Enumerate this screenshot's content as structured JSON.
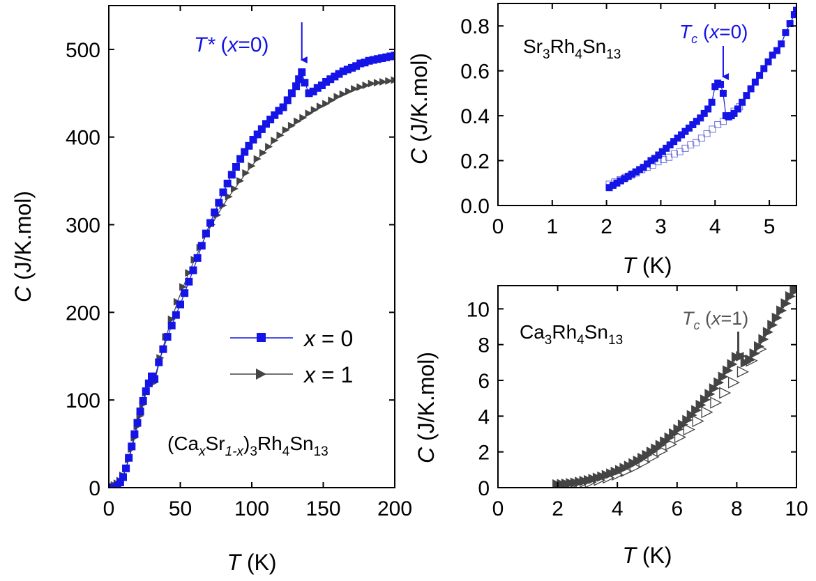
{
  "colors": {
    "blue": "#1414e6",
    "gray": "#444444",
    "open_blue": "#6f74d8",
    "open_gray": "#444444"
  },
  "chart_data": [
    {
      "panel": "left",
      "type": "scatter",
      "xlabel_italic": "T",
      "xlabel_unit": "(K)",
      "ylabel_italic": "C",
      "ylabel_unit": "(J/K.mol)",
      "xlim": [
        0,
        200
      ],
      "ylim": [
        0,
        550
      ],
      "xticks": [
        "0",
        "50",
        "100",
        "150",
        "200"
      ],
      "yticks": [
        "0",
        "100",
        "200",
        "300",
        "400",
        "500"
      ],
      "compound_label": {
        "a": "(Ca",
        "b": "x",
        "c": "Sr",
        "d": "1-x",
        "e": ")",
        "f": "3",
        "g": "Rh",
        "h": "4",
        "i": "Sn",
        "j": "13"
      },
      "annotation": {
        "italic": "T*",
        "rest_open": " (",
        "x": "x",
        "rest_close": "=0)"
      },
      "annotation_x": 135,
      "legend": [
        {
          "sym": "x",
          "text": " = 0"
        },
        {
          "sym": "x",
          "text": " = 1"
        }
      ],
      "series": [
        {
          "marker": "square",
          "x": [
            2,
            4,
            6,
            8,
            10,
            12,
            14,
            16,
            18,
            20,
            22,
            24,
            26,
            28,
            30,
            32,
            35,
            38,
            41,
            44,
            47,
            50,
            53,
            56,
            59,
            62,
            65,
            68,
            71,
            74,
            77,
            80,
            83,
            86,
            89,
            92,
            95,
            98,
            101,
            104,
            107,
            110,
            113,
            116,
            119,
            122,
            125,
            128,
            131,
            133,
            135,
            137,
            140,
            143,
            146,
            149,
            152,
            155,
            158,
            161,
            164,
            167,
            170,
            173,
            176,
            179,
            182,
            185,
            188,
            191,
            194,
            197,
            200
          ],
          "y": [
            0,
            0,
            2,
            6,
            12,
            22,
            34,
            47,
            61,
            74,
            87,
            99,
            110,
            119,
            127,
            124,
            143,
            158,
            172,
            185,
            197,
            209,
            222,
            235,
            248,
            262,
            276,
            290,
            302,
            314,
            325,
            337,
            347,
            357,
            366,
            375,
            383,
            390,
            397,
            403,
            409,
            415,
            420,
            425,
            430,
            434,
            442,
            450,
            458,
            466,
            474,
            462,
            450,
            452,
            456,
            459,
            463,
            466,
            469,
            472,
            475,
            477,
            479,
            481,
            484,
            485,
            487,
            488,
            489,
            490,
            491,
            492,
            493
          ]
        },
        {
          "marker": "triangle-right",
          "x": [
            2,
            4,
            6,
            8,
            10,
            12,
            14,
            16,
            18,
            20,
            22,
            24,
            26,
            28,
            30,
            32,
            36,
            40,
            44,
            48,
            52,
            56,
            60,
            64,
            68,
            72,
            76,
            80,
            84,
            88,
            92,
            96,
            100,
            104,
            108,
            112,
            116,
            120,
            124,
            128,
            132,
            136,
            140,
            144,
            148,
            152,
            156,
            160,
            164,
            168,
            172,
            176,
            180,
            184,
            188,
            192,
            196,
            200
          ],
          "y": [
            2,
            3,
            5,
            8,
            14,
            22,
            32,
            44,
            57,
            70,
            82,
            95,
            108,
            118,
            126,
            120,
            148,
            172,
            192,
            212,
            229,
            245,
            260,
            274,
            288,
            300,
            311,
            322,
            332,
            341,
            350,
            359,
            367,
            375,
            382,
            389,
            396,
            402,
            408,
            413,
            418,
            422,
            427,
            431,
            435,
            438,
            442,
            446,
            449,
            452,
            455,
            457,
            459,
            461,
            462,
            463,
            464,
            465
          ]
        }
      ]
    },
    {
      "panel": "top-right",
      "type": "scatter",
      "xlabel_italic": "T",
      "xlabel_unit": "(K)",
      "ylabel_italic": "C",
      "ylabel_unit": "(J/K.mol)",
      "xlim": [
        0,
        5.5
      ],
      "ylim": [
        0,
        0.9
      ],
      "xticks": [
        "0",
        "1",
        "2",
        "3",
        "4",
        "5"
      ],
      "yticks": [
        "0.0",
        "0.2",
        "0.4",
        "0.6",
        "0.8"
      ],
      "compound_label": {
        "a": "Sr",
        "b": "3",
        "c": "Rh",
        "d": "4",
        "e": "Sn",
        "f": "13"
      },
      "annotation": {
        "italic": "T",
        "sub": "c",
        "rest_open": " (",
        "x": "x",
        "rest_close": "=0)"
      },
      "annotation_x": 4.15,
      "series": [
        {
          "marker": "square",
          "x": [
            2.05,
            2.12,
            2.19,
            2.26,
            2.33,
            2.4,
            2.47,
            2.54,
            2.61,
            2.68,
            2.75,
            2.82,
            2.89,
            2.96,
            3.03,
            3.1,
            3.17,
            3.24,
            3.31,
            3.38,
            3.45,
            3.52,
            3.59,
            3.66,
            3.73,
            3.8,
            3.87,
            3.94,
            4.0,
            4.05,
            4.1,
            4.15,
            4.2,
            4.25,
            4.3,
            4.35,
            4.42,
            4.5,
            4.58,
            4.66,
            4.74,
            4.82,
            4.9,
            4.98,
            5.06,
            5.14,
            5.22,
            5.3,
            5.38,
            5.46,
            5.5
          ],
          "y": [
            0.08,
            0.09,
            0.1,
            0.11,
            0.12,
            0.13,
            0.14,
            0.15,
            0.16,
            0.17,
            0.185,
            0.2,
            0.21,
            0.225,
            0.24,
            0.255,
            0.27,
            0.285,
            0.3,
            0.315,
            0.33,
            0.345,
            0.36,
            0.375,
            0.39,
            0.41,
            0.43,
            0.46,
            0.53,
            0.545,
            0.54,
            0.5,
            0.4,
            0.395,
            0.4,
            0.41,
            0.43,
            0.46,
            0.49,
            0.52,
            0.55,
            0.58,
            0.61,
            0.64,
            0.67,
            0.69,
            0.72,
            0.77,
            0.81,
            0.85,
            0.87
          ]
        },
        {
          "marker": "open-square",
          "x": [
            2.05,
            2.15,
            2.25,
            2.35,
            2.45,
            2.55,
            2.65,
            2.75,
            2.85,
            2.95,
            3.05,
            3.15,
            3.25,
            3.35,
            3.45,
            3.55,
            3.65,
            3.75,
            3.85,
            3.95,
            4.05,
            4.15,
            4.25,
            4.35,
            4.45
          ],
          "y": [
            0.095,
            0.105,
            0.115,
            0.125,
            0.135,
            0.145,
            0.16,
            0.17,
            0.18,
            0.195,
            0.205,
            0.215,
            0.23,
            0.24,
            0.255,
            0.27,
            0.28,
            0.3,
            0.32,
            0.34,
            0.36,
            0.375,
            0.395,
            0.42,
            0.44
          ]
        }
      ]
    },
    {
      "panel": "bottom-right",
      "type": "scatter",
      "xlabel_italic": "T",
      "xlabel_unit": "(K)",
      "ylabel_italic": "C",
      "ylabel_unit": "(J/K.mol)",
      "xlim": [
        0,
        10
      ],
      "ylim": [
        0,
        11.3
      ],
      "xticks": [
        "0",
        "2",
        "4",
        "6",
        "8",
        "10"
      ],
      "yticks": [
        "0",
        "2",
        "4",
        "6",
        "8",
        "10"
      ],
      "compound_label": {
        "a": "Ca",
        "b": "3",
        "c": "Rh",
        "d": "4",
        "e": "Sn",
        "f": "13"
      },
      "annotation": {
        "italic": "T",
        "sub": "c",
        "rest_open": " (",
        "x": "x",
        "rest_close": "=1)"
      },
      "annotation_x": 8.05,
      "series": [
        {
          "marker": "triangle-right",
          "x": [
            2.0,
            2.15,
            2.3,
            2.45,
            2.6,
            2.75,
            2.9,
            3.05,
            3.2,
            3.35,
            3.5,
            3.65,
            3.8,
            3.95,
            4.1,
            4.25,
            4.4,
            4.55,
            4.7,
            4.85,
            5.0,
            5.15,
            5.3,
            5.45,
            5.6,
            5.75,
            5.9,
            6.05,
            6.2,
            6.35,
            6.5,
            6.65,
            6.8,
            6.95,
            7.1,
            7.25,
            7.4,
            7.55,
            7.7,
            7.85,
            8.0,
            8.15,
            8.3,
            8.45,
            8.6,
            8.75,
            8.9,
            9.05,
            9.2,
            9.35,
            9.5,
            9.65,
            9.8,
            9.95,
            10.0
          ],
          "y": [
            0.18,
            0.2,
            0.22,
            0.25,
            0.28,
            0.32,
            0.37,
            0.42,
            0.48,
            0.55,
            0.62,
            0.7,
            0.79,
            0.88,
            0.98,
            1.1,
            1.22,
            1.36,
            1.5,
            1.66,
            1.82,
            2.0,
            2.18,
            2.38,
            2.58,
            2.8,
            3.03,
            3.27,
            3.52,
            3.78,
            4.05,
            4.33,
            4.62,
            4.92,
            5.23,
            5.55,
            5.88,
            6.2,
            6.55,
            6.9,
            7.3,
            7.35,
            7.0,
            7.15,
            7.5,
            7.9,
            8.3,
            8.7,
            9.1,
            9.5,
            9.9,
            10.3,
            10.7,
            11.0,
            11.1
          ]
        },
        {
          "marker": "open-triangle-right",
          "x": [
            2.2,
            2.5,
            2.8,
            3.1,
            3.4,
            3.7,
            4.0,
            4.3,
            4.6,
            4.9,
            5.2,
            5.5,
            5.8,
            6.1,
            6.4,
            6.7,
            7.0,
            7.3,
            7.6,
            7.9,
            8.2,
            8.5,
            8.8
          ],
          "y": [
            0.1,
            0.15,
            0.22,
            0.3,
            0.42,
            0.55,
            0.72,
            0.92,
            1.15,
            1.42,
            1.72,
            2.05,
            2.42,
            2.82,
            3.25,
            3.72,
            4.22,
            4.75,
            5.3,
            5.88,
            6.48,
            7.1,
            7.75
          ]
        }
      ]
    }
  ]
}
